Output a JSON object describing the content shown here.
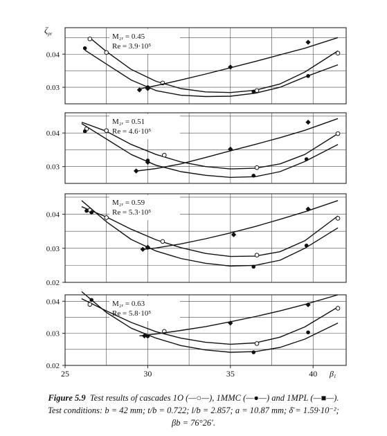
{
  "chart_data": [
    {
      "type": "line",
      "ylabel": "ζ",
      "ylabel_sub": "pr",
      "xlim": [
        25,
        42
      ],
      "ylim": [
        0.025,
        0.048
      ],
      "yticks": [
        0.03,
        0.04
      ],
      "ytick_labels": [
        "0.03",
        "0.04"
      ],
      "annotation": [
        "M₂ᵣ = 0.45",
        "Re = 3.9·10⁵"
      ],
      "series": [
        {
          "marker": "open-circle",
          "x": [
            26.6,
            27.5,
            29,
            30.5,
            32,
            33.5,
            35,
            36.5,
            38,
            39.5,
            41.5
          ],
          "y": [
            0.0445,
            0.0408,
            0.0354,
            0.0318,
            0.0296,
            0.0286,
            0.0284,
            0.0291,
            0.031,
            0.0346,
            0.041
          ],
          "points": [
            [
              26.5,
              0.0446
            ],
            [
              27.5,
              0.0405
            ],
            [
              30.9,
              0.0313
            ],
            [
              36.6,
              0.029
            ],
            [
              41.5,
              0.0403
            ]
          ]
        },
        {
          "marker": "filled-circle",
          "x": [
            26.2,
            27.5,
            29,
            30.5,
            32,
            33.5,
            35,
            36.5,
            38,
            39.5,
            41.5
          ],
          "y": [
            0.0412,
            0.037,
            0.0322,
            0.029,
            0.0276,
            0.0272,
            0.0273,
            0.0282,
            0.03,
            0.0331,
            0.0368
          ],
          "points": [
            [
              26.2,
              0.0418
            ],
            [
              30.0,
              0.03
            ],
            [
              36.4,
              0.0287
            ],
            [
              39.7,
              0.0334
            ]
          ]
        },
        {
          "marker": "filled-square",
          "x": [
            29.5,
            30.5,
            32,
            33.5,
            35,
            36.5,
            38,
            39.5,
            41.5
          ],
          "y": [
            0.0295,
            0.0305,
            0.0322,
            0.034,
            0.0359,
            0.0378,
            0.0398,
            0.0418,
            0.045
          ],
          "points": [
            [
              29.5,
              0.0292
            ],
            [
              30.0,
              0.0296
            ],
            [
              35.0,
              0.0361
            ],
            [
              39.7,
              0.0436
            ]
          ]
        }
      ]
    },
    {
      "type": "line",
      "ylabel": "",
      "xlim": [
        25,
        42
      ],
      "ylim": [
        0.025,
        0.046
      ],
      "yticks": [
        0.03,
        0.04
      ],
      "ytick_labels": [
        "0.03",
        "0.04"
      ],
      "annotation": [
        "M₂ᵣ = 0.51",
        "Re = 4.6·10⁵"
      ],
      "series": [
        {
          "marker": "open-circle",
          "x": [
            26,
            27.5,
            29,
            30.5,
            32,
            33.5,
            35,
            36.5,
            38,
            39.5,
            41.5
          ],
          "y": [
            0.0432,
            0.0405,
            0.0366,
            0.0336,
            0.0314,
            0.03,
            0.0293,
            0.0295,
            0.0308,
            0.0336,
            0.0398
          ],
          "points": [
            [
              26.3,
              0.0412
            ],
            [
              27.5,
              0.0407
            ],
            [
              31.0,
              0.0334
            ],
            [
              36.6,
              0.0297
            ],
            [
              41.5,
              0.0398
            ]
          ]
        },
        {
          "marker": "filled-circle",
          "x": [
            26,
            27.5,
            29,
            30.5,
            32,
            33.5,
            35,
            36.5,
            38,
            39.5,
            41.5
          ],
          "y": [
            0.0428,
            0.0382,
            0.0336,
            0.0304,
            0.0285,
            0.0274,
            0.0268,
            0.027,
            0.0285,
            0.0315,
            0.0366
          ],
          "points": [
            [
              26.2,
              0.0405
            ],
            [
              30.0,
              0.0318
            ],
            [
              36.4,
              0.0273
            ],
            [
              39.6,
              0.0322
            ]
          ]
        },
        {
          "marker": "filled-square",
          "x": [
            29.2,
            30.5,
            32,
            33.5,
            35,
            36.5,
            38,
            39.5,
            41.5
          ],
          "y": [
            0.0286,
            0.0294,
            0.0308,
            0.0327,
            0.0347,
            0.0366,
            0.0386,
            0.0408,
            0.0443
          ],
          "points": [
            [
              29.3,
              0.0287
            ],
            [
              30.0,
              0.0313
            ],
            [
              35.0,
              0.0352
            ],
            [
              39.7,
              0.0432
            ]
          ]
        }
      ]
    },
    {
      "type": "line",
      "ylabel": "",
      "xlim": [
        25,
        42
      ],
      "ylim": [
        0.02,
        0.046
      ],
      "yticks": [
        0.02,
        0.03,
        0.04
      ],
      "ytick_labels": [
        "0.02",
        "0.03",
        "0.04"
      ],
      "annotation": [
        "M₂ᵣ = 0.59",
        "Re = 5.3·10⁵"
      ],
      "series": [
        {
          "marker": "open-circle",
          "x": [
            26,
            27.5,
            29,
            30.5,
            32,
            33.5,
            35,
            36.5,
            38,
            39.5,
            41.5
          ],
          "y": [
            0.0422,
            0.0392,
            0.0356,
            0.0325,
            0.0302,
            0.0285,
            0.0276,
            0.0277,
            0.029,
            0.0322,
            0.0395
          ],
          "points": [
            [
              26.5,
              0.0412
            ],
            [
              27.5,
              0.039
            ],
            [
              30.9,
              0.032
            ],
            [
              36.6,
              0.028
            ],
            [
              41.5,
              0.0388
            ]
          ]
        },
        {
          "marker": "filled-circle",
          "x": [
            26,
            27.5,
            29,
            30.5,
            32,
            33.5,
            35,
            36.5,
            38,
            39.5,
            41.5
          ],
          "y": [
            0.044,
            0.0378,
            0.0326,
            0.0292,
            0.027,
            0.0256,
            0.0248,
            0.025,
            0.0265,
            0.03,
            0.036
          ],
          "points": [
            [
              26.3,
              0.041
            ],
            [
              26.6,
              0.0405
            ],
            [
              30.0,
              0.0302
            ],
            [
              36.4,
              0.0246
            ],
            [
              39.6,
              0.0308
            ]
          ]
        },
        {
          "marker": "filled-square",
          "x": [
            29.6,
            30.5,
            32,
            33.5,
            35,
            36.5,
            38,
            39.5,
            41.5
          ],
          "y": [
            0.0296,
            0.0301,
            0.0313,
            0.0328,
            0.0345,
            0.0364,
            0.0385,
            0.0407,
            0.044
          ],
          "points": [
            [
              29.7,
              0.0297
            ],
            [
              30.0,
              0.0303
            ],
            [
              35.2,
              0.034
            ],
            [
              39.7,
              0.0415
            ]
          ]
        }
      ]
    },
    {
      "type": "line",
      "ylabel": "",
      "xlabel": "β",
      "xlabel_sub": "1",
      "xlim": [
        25,
        42
      ],
      "ylim": [
        0.02,
        0.042
      ],
      "xticks": [
        25,
        30,
        35,
        40
      ],
      "xtick_labels": [
        "25",
        "30",
        "35",
        "40"
      ],
      "yticks": [
        0.02,
        0.03,
        0.04
      ],
      "ytick_labels": [
        "0.02",
        "0.03",
        "0.04"
      ],
      "annotation": [
        "M₂ᵣ = 0.63",
        "Re = 5.8·10⁵"
      ],
      "series": [
        {
          "marker": "open-circle",
          "x": [
            26,
            27.5,
            29,
            30.5,
            32,
            33.5,
            35,
            36.5,
            38,
            39.5,
            41.5
          ],
          "y": [
            0.0408,
            0.037,
            0.0334,
            0.0305,
            0.0285,
            0.0272,
            0.0266,
            0.027,
            0.0288,
            0.032,
            0.0382
          ],
          "points": [
            [
              26.5,
              0.039
            ],
            [
              31.0,
              0.0306
            ],
            [
              36.6,
              0.0268
            ],
            [
              41.5,
              0.0378
            ]
          ]
        },
        {
          "marker": "filled-circle",
          "x": [
            26,
            27.5,
            29,
            30.5,
            32,
            33.5,
            35,
            36.5,
            38,
            39.5,
            41.5
          ],
          "y": [
            0.043,
            0.0365,
            0.0316,
            0.0285,
            0.0262,
            0.0248,
            0.0241,
            0.0243,
            0.0256,
            0.0282,
            0.0332
          ],
          "points": [
            [
              26.6,
              0.0404
            ],
            [
              30.0,
              0.0291
            ],
            [
              36.4,
              0.0241
            ],
            [
              39.7,
              0.0303
            ]
          ]
        },
        {
          "marker": "filled-square",
          "x": [
            29.5,
            30.5,
            32,
            33.5,
            35,
            36.5,
            38,
            39.5,
            41.5
          ],
          "y": [
            0.0292,
            0.0298,
            0.0309,
            0.0321,
            0.0336,
            0.0352,
            0.037,
            0.039,
            0.042
          ],
          "points": [
            [
              29.8,
              0.0292
            ],
            [
              35.0,
              0.0332
            ],
            [
              39.7,
              0.0389
            ]
          ]
        }
      ]
    }
  ],
  "caption": {
    "label": "Figure 5.9",
    "line1_text": "Test results of cascades 1O (—○—), 1MMC (—●—) and 1MPL (—■—).",
    "line2": "Test conditions: b = 42 mm; t/b = 0.722; l/b = 2.857; a = 10.87 mm; δ̄ = 1.59·10⁻²;",
    "line3": "βb = 76°26′."
  }
}
